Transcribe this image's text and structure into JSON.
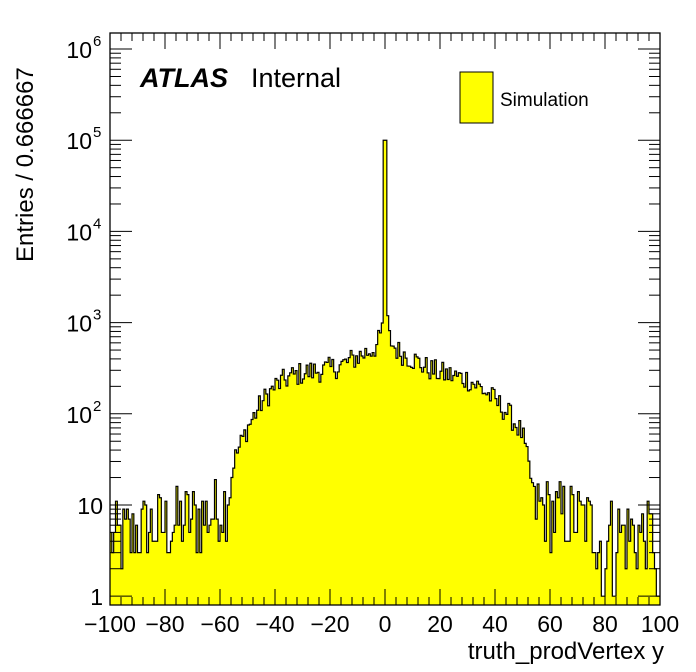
{
  "chart_data": {
    "type": "histogram",
    "x_label": "truth_prodVertex y",
    "y_label": "Entries / 0.666667",
    "y_scale": "log",
    "xlim": [
      -100,
      100
    ],
    "ylim": [
      0.8,
      1500000
    ],
    "bin_width": 0.666667,
    "fill_color": "#ffff00",
    "line_color": "#000000",
    "x_ticks": [
      "−100",
      "−80",
      "−60",
      "−40",
      "−20",
      "0",
      "20",
      "40",
      "60",
      "80",
      "100"
    ],
    "y_ticks": [
      {
        "base": "1",
        "exp": ""
      },
      {
        "base": "10",
        "exp": ""
      },
      {
        "base": "10",
        "exp": "2"
      },
      {
        "base": "10",
        "exp": "3"
      },
      {
        "base": "10",
        "exp": "4"
      },
      {
        "base": "10",
        "exp": "5"
      },
      {
        "base": "10",
        "exp": "6"
      }
    ],
    "legend": {
      "entry": "Simulation",
      "placement": "top-right"
    },
    "atlas_label": {
      "bold": "ATLAS",
      "text": "Internal"
    },
    "profile_points": [
      [
        -100,
        4
      ],
      [
        -90,
        5
      ],
      [
        -80,
        6
      ],
      [
        -70,
        7
      ],
      [
        -62,
        8
      ],
      [
        -58,
        10
      ],
      [
        -55,
        30
      ],
      [
        -50,
        70
      ],
      [
        -45,
        130
      ],
      [
        -40,
        200
      ],
      [
        -35,
        250
      ],
      [
        -30,
        280
      ],
      [
        -20,
        310
      ],
      [
        -15,
        350
      ],
      [
        -10,
        420
      ],
      [
        -5,
        500
      ],
      [
        -3,
        560
      ],
      [
        -1.5,
        700
      ],
      [
        -0.7,
        1200
      ],
      [
        0,
        100000
      ],
      [
        0.7,
        1200
      ],
      [
        1.5,
        700
      ],
      [
        3,
        560
      ],
      [
        5,
        480
      ],
      [
        10,
        400
      ],
      [
        15,
        320
      ],
      [
        20,
        280
      ],
      [
        30,
        240
      ],
      [
        35,
        190
      ],
      [
        40,
        140
      ],
      [
        45,
        100
      ],
      [
        50,
        60
      ],
      [
        53,
        20
      ],
      [
        55,
        10
      ],
      [
        60,
        8
      ],
      [
        70,
        7
      ],
      [
        80,
        5
      ],
      [
        90,
        5
      ],
      [
        100,
        4
      ]
    ],
    "dip_bins": [
      [
        79.5,
        1
      ],
      [
        83.2,
        1
      ],
      [
        99.5,
        1
      ]
    ],
    "fluctuation": 0.13,
    "random_seed": 12345
  }
}
